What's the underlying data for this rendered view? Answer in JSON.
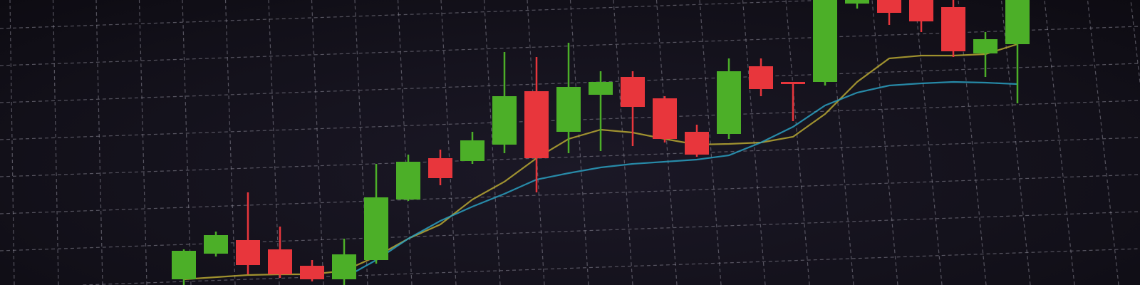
{
  "chart_data": {
    "type": "candlestick",
    "title": "",
    "xlabel": "",
    "ylabel": "",
    "grid": true,
    "ylim": [
      0,
      400
    ],
    "colors": {
      "background": "#14111c",
      "up": "#4caf28",
      "down": "#e8363c",
      "grid": "#9a98a6",
      "ma_fast": "#b8a832",
      "ma_slow": "#2a9fc0"
    },
    "candles": [
      {
        "o": 8,
        "h": 50,
        "l": 0,
        "c": 48
      },
      {
        "o": 44,
        "h": 75,
        "l": 40,
        "c": 70
      },
      {
        "o": 63,
        "h": 130,
        "l": 15,
        "c": 28
      },
      {
        "o": 50,
        "h": 82,
        "l": 10,
        "c": 15
      },
      {
        "o": 27,
        "h": 35,
        "l": 5,
        "c": 8
      },
      {
        "o": 8,
        "h": 65,
        "l": 0,
        "c": 43
      },
      {
        "o": 35,
        "h": 170,
        "l": 30,
        "c": 123
      },
      {
        "o": 120,
        "h": 183,
        "l": 118,
        "c": 173
      },
      {
        "o": 178,
        "h": 190,
        "l": 140,
        "c": 150
      },
      {
        "o": 174,
        "h": 215,
        "l": 170,
        "c": 203
      },
      {
        "o": 197,
        "h": 327,
        "l": 185,
        "c": 265
      },
      {
        "o": 272,
        "h": 320,
        "l": 130,
        "c": 178
      },
      {
        "o": 215,
        "h": 340,
        "l": 185,
        "c": 278
      },
      {
        "o": 267,
        "h": 300,
        "l": 188,
        "c": 285
      },
      {
        "o": 292,
        "h": 300,
        "l": 195,
        "c": 250
      },
      {
        "o": 262,
        "h": 265,
        "l": 200,
        "c": 205
      },
      {
        "o": 215,
        "h": 225,
        "l": 180,
        "c": 183
      },
      {
        "o": 212,
        "h": 318,
        "l": 205,
        "c": 300
      },
      {
        "o": 307,
        "h": 318,
        "l": 265,
        "c": 275
      },
      {
        "o": 285,
        "h": 285,
        "l": 230,
        "c": 282
      },
      {
        "o": 285,
        "h": 400,
        "l": 280,
        "c": 400
      },
      {
        "o": 395,
        "h": 400,
        "l": 388,
        "c": 400
      },
      {
        "o": 400,
        "h": 400,
        "l": 365,
        "c": 382
      },
      {
        "o": 400,
        "h": 400,
        "l": 355,
        "c": 370
      },
      {
        "o": 390,
        "h": 400,
        "l": 320,
        "c": 328
      },
      {
        "o": 325,
        "h": 355,
        "l": 292,
        "c": 345
      },
      {
        "o": 338,
        "h": 400,
        "l": 255,
        "c": 400
      }
    ],
    "moving_averages": [
      {
        "color_key": "ma_fast",
        "values": [
          8,
          11,
          14,
          15,
          15,
          20,
          40,
          65,
          85,
          120,
          145,
          178,
          205,
          218,
          214,
          205,
          197,
          198,
          200,
          208,
          240,
          285,
          318,
          322,
          322,
          324,
          338
        ]
      },
      {
        "color_key": "ma_slow",
        "values": [
          null,
          null,
          null,
          null,
          null,
          10,
          35,
          65,
          90,
          110,
          128,
          148,
          157,
          165,
          170,
          173,
          176,
          182,
          200,
          222,
          252,
          270,
          280,
          283,
          285,
          284,
          282
        ]
      }
    ]
  }
}
